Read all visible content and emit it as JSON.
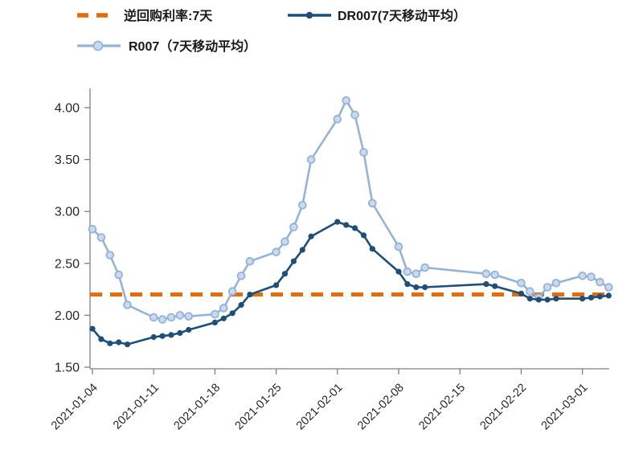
{
  "chart_data": {
    "type": "line",
    "title": "",
    "xlabel": "",
    "ylabel": "",
    "x_start": "2021-01-04",
    "ylim": [
      1.5,
      4.0
    ],
    "ytick_labels": [
      "1.50",
      "2.00",
      "2.50",
      "3.00",
      "3.50",
      "4.00"
    ],
    "xtick_labels": [
      "2021-01-04",
      "2021-01-11",
      "2021-01-18",
      "2021-01-25",
      "2021-02-01",
      "2021-02-08",
      "2021-02-15",
      "2021-02-22",
      "2021-03-01"
    ],
    "grid": "off",
    "legend_position": "top",
    "axis_color": "#7f7f7f",
    "series": [
      {
        "id": "repo",
        "name": "逆回购利率:7天",
        "type": "hline",
        "style": "dashed",
        "color": "#E46C0A",
        "value": 2.2
      },
      {
        "id": "r007",
        "name": "R007（7天移动平均）",
        "type": "line",
        "color": "#95B3D7",
        "marker": "circle-open",
        "marker_fill": "#CBD9EE",
        "dates": [
          "2021-01-04",
          "2021-01-05",
          "2021-01-06",
          "2021-01-07",
          "2021-01-08",
          "2021-01-11",
          "2021-01-12",
          "2021-01-13",
          "2021-01-14",
          "2021-01-15",
          "2021-01-18",
          "2021-01-19",
          "2021-01-20",
          "2021-01-21",
          "2021-01-22",
          "2021-01-25",
          "2021-01-26",
          "2021-01-27",
          "2021-01-28",
          "2021-01-29",
          "2021-02-01",
          "2021-02-02",
          "2021-02-03",
          "2021-02-04",
          "2021-02-05",
          "2021-02-08",
          "2021-02-09",
          "2021-02-10",
          "2021-02-11",
          "2021-02-18",
          "2021-02-19",
          "2021-02-22",
          "2021-02-23",
          "2021-02-24",
          "2021-02-25",
          "2021-02-26",
          "2021-03-01",
          "2021-03-02",
          "2021-03-03",
          "2021-03-04"
        ],
        "values": [
          2.83,
          2.75,
          2.58,
          2.39,
          2.1,
          1.98,
          1.96,
          1.98,
          2.0,
          1.99,
          2.01,
          2.07,
          2.23,
          2.38,
          2.52,
          2.61,
          2.71,
          2.85,
          3.06,
          3.5,
          3.89,
          4.07,
          3.93,
          3.57,
          3.08,
          2.66,
          2.42,
          2.4,
          2.46,
          2.4,
          2.39,
          2.31,
          2.23,
          2.17,
          2.27,
          2.31,
          2.38,
          2.37,
          2.32,
          2.27
        ]
      },
      {
        "id": "dr007",
        "name": "DR007(7天移动平均）",
        "type": "line",
        "color": "#1F4E79",
        "marker": "circle-filled",
        "marker_fill": "#1F4E79",
        "dates": [
          "2021-01-04",
          "2021-01-05",
          "2021-01-06",
          "2021-01-07",
          "2021-01-08",
          "2021-01-11",
          "2021-01-12",
          "2021-01-13",
          "2021-01-14",
          "2021-01-15",
          "2021-01-18",
          "2021-01-19",
          "2021-01-20",
          "2021-01-21",
          "2021-01-22",
          "2021-01-25",
          "2021-01-26",
          "2021-01-27",
          "2021-01-28",
          "2021-01-29",
          "2021-02-01",
          "2021-02-02",
          "2021-02-03",
          "2021-02-04",
          "2021-02-05",
          "2021-02-08",
          "2021-02-09",
          "2021-02-10",
          "2021-02-11",
          "2021-02-18",
          "2021-02-19",
          "2021-02-22",
          "2021-02-23",
          "2021-02-24",
          "2021-02-25",
          "2021-02-26",
          "2021-03-01",
          "2021-03-02",
          "2021-03-03",
          "2021-03-04"
        ],
        "values": [
          1.87,
          1.77,
          1.73,
          1.74,
          1.72,
          1.79,
          1.8,
          1.81,
          1.83,
          1.86,
          1.93,
          1.97,
          2.02,
          2.1,
          2.2,
          2.29,
          2.4,
          2.52,
          2.63,
          2.76,
          2.9,
          2.87,
          2.84,
          2.77,
          2.64,
          2.42,
          2.3,
          2.27,
          2.27,
          2.3,
          2.28,
          2.21,
          2.16,
          2.15,
          2.15,
          2.16,
          2.16,
          2.17,
          2.18,
          2.19
        ]
      }
    ]
  }
}
